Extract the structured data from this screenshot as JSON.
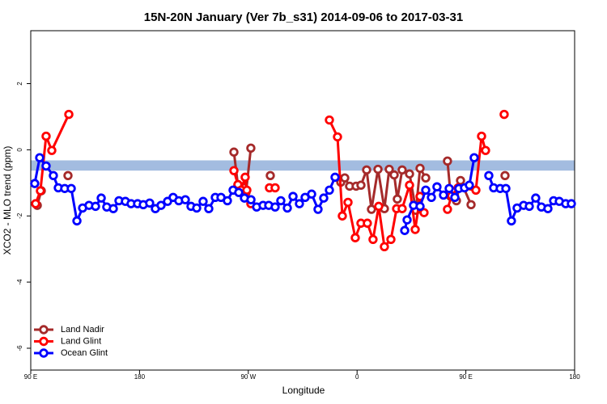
{
  "chart_data": {
    "type": "line",
    "title": "15N-20N January (Ver 7b_s31)   2014-09-06 to 2017-03-31",
    "xlabel": "Longitude",
    "ylabel": "XCO2 - MLO trend (ppm)",
    "xlim": [
      90,
      540
    ],
    "ylim": [
      -6.66,
      3.6
    ],
    "xticks": [
      {
        "value": 90,
        "label": "90 E"
      },
      180,
      {
        "value": 270,
        "label": "90 W"
      },
      {
        "value": 360,
        "label": "0"
      },
      {
        "value": 450,
        "label": "90 E"
      },
      {
        "value": 540,
        "label": "180"
      }
    ],
    "yticks": [
      -6,
      -4,
      -2,
      0,
      2
    ],
    "band": [
      -0.63,
      -0.32
    ],
    "band_color": "#a3bce0",
    "legend": "bottomleft",
    "series": [
      {
        "name": "Land Nadir",
        "color": "#a52a2a",
        "x": [
          95.4,
          98.7,
          null,
          120.8,
          null,
          258.1,
          261.4,
          265.4,
          268.1,
          272.1,
          null,
          288.2,
          null,
          346.5,
          349.8,
          353.8,
          359.2,
          363.2,
          367.9,
          371.9,
          377.3,
          382.6,
          386.6,
          390.7,
          393.3,
          397.3,
          403.4,
          408.7,
          412.1,
          416.8,
          null,
          434.8,
          437.5,
          442.2,
          445.6,
          454.3,
          null,
          482.4
        ],
        "values": [
          -1.68,
          -1.24,
          null,
          -0.78,
          null,
          -0.07,
          -1.07,
          -1.12,
          -1.29,
          0.05,
          null,
          -0.78,
          null,
          -0.98,
          -0.85,
          -1.1,
          -1.1,
          -1.07,
          -0.61,
          -1.8,
          -0.59,
          -1.78,
          -0.59,
          -0.76,
          -1.49,
          -0.61,
          -0.73,
          -1.83,
          -0.56,
          -0.85,
          null,
          -0.34,
          -1.41,
          -1.54,
          -0.93,
          -1.66,
          null,
          -0.78
        ]
      },
      {
        "name": "Land Glint",
        "color": "#ff0000",
        "x": [
          94,
          98,
          102.7,
          107.4,
          121.5,
          null,
          258.1,
          261.4,
          264.1,
          267.4,
          268.8,
          272.1,
          null,
          287.5,
          292.2,
          null,
          337.1,
          343.8,
          347.8,
          352.5,
          358.5,
          363.2,
          368.5,
          373.2,
          377.9,
          382.6,
          388,
          392.7,
          397.3,
          403.4,
          408.1,
          412.1,
          415.4,
          null,
          434.8,
          438.2,
          443.6,
          458.3,
          463,
          466.3,
          null,
          481.7
        ],
        "values": [
          -1.63,
          -1.24,
          0.41,
          -0.02,
          1.07,
          null,
          -0.63,
          -1.05,
          -1.22,
          -0.83,
          -1.22,
          -1.63,
          null,
          -1.15,
          -1.15,
          null,
          0.9,
          0.39,
          -2,
          -1.59,
          -2.66,
          -2.22,
          -2.22,
          -2.71,
          -1.71,
          -2.93,
          -2.71,
          -1.78,
          -1.78,
          -1.07,
          -2.41,
          -1.41,
          -1.9,
          null,
          -1.8,
          -1.39,
          -1.15,
          -1.22,
          0.41,
          -0.02,
          null,
          1.07
        ]
      },
      {
        "name": "Ocean Glint",
        "color": "#0000ff",
        "x": [
          93.3,
          97.4,
          102.7,
          108.7,
          112.8,
          118.1,
          123.5,
          128.2,
          132.9,
          138.2,
          143.6,
          148.3,
          152.9,
          158.3,
          163,
          168.3,
          173,
          178.4,
          183.1,
          188.4,
          193.1,
          197.8,
          203.2,
          207.8,
          212.5,
          217.9,
          222.6,
          227.3,
          232.6,
          237.3,
          242.7,
          247.4,
          252.7,
          257.4,
          262.1,
          266.8,
          272.2,
          276.9,
          282.2,
          286.9,
          292.2,
          296.9,
          302.3,
          307,
          312.3,
          317,
          322.4,
          327.7,
          332.4,
          337.1,
          341.8,
          null,
          399.4,
          401.4,
          406.7,
          412.1,
          416.8,
          421.5,
          426.1,
          431.5,
          436.2,
          440.9,
          444.2,
          448.9,
          452.9,
          456.9,
          null,
          469,
          473,
          478.4,
          483.1,
          487.7,
          492.4,
          497.8,
          502.5,
          507.8,
          512.5,
          517.9,
          522.6,
          527.3,
          532.6,
          537.3
        ],
        "values": [
          -1.02,
          -0.24,
          -0.49,
          -0.78,
          -1.15,
          -1.17,
          -1.17,
          -2.15,
          -1.76,
          -1.68,
          -1.71,
          -1.46,
          -1.73,
          -1.78,
          -1.54,
          -1.56,
          -1.63,
          -1.63,
          -1.66,
          -1.61,
          -1.78,
          -1.68,
          -1.56,
          -1.44,
          -1.54,
          -1.51,
          -1.71,
          -1.76,
          -1.56,
          -1.78,
          -1.44,
          -1.44,
          -1.54,
          -1.22,
          -1.29,
          -1.46,
          -1.51,
          -1.73,
          -1.68,
          -1.68,
          -1.73,
          -1.54,
          -1.76,
          -1.41,
          -1.63,
          -1.44,
          -1.34,
          -1.8,
          -1.46,
          -1.22,
          -0.83,
          null,
          -2.44,
          -2.12,
          -1.68,
          -1.71,
          -1.22,
          -1.44,
          -1.12,
          -1.37,
          -1.17,
          -1.44,
          -1.17,
          -1.15,
          -1.07,
          -0.24,
          null,
          -0.78,
          -1.15,
          -1.17,
          -1.17,
          -2.15,
          -1.76,
          -1.68,
          -1.71,
          -1.46,
          -1.73,
          -1.78,
          -1.54,
          -1.56,
          -1.63,
          -1.63
        ]
      }
    ]
  }
}
